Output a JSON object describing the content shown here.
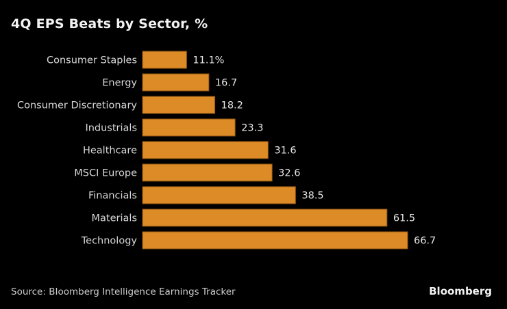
{
  "chart_data": {
    "type": "bar",
    "orientation": "horizontal",
    "title": "4Q EPS Beats by Sector, %",
    "categories": [
      "Consumer Staples",
      "Energy",
      "Consumer Discretionary",
      "Industrials",
      "Healthcare",
      "MSCI Europe",
      "Financials",
      "Materials",
      "Technology"
    ],
    "values": [
      11.1,
      16.7,
      18.2,
      23.3,
      31.6,
      32.6,
      38.5,
      61.5,
      66.7
    ],
    "data_labels": [
      "11.1%",
      "16.7",
      "18.2",
      "23.3",
      "31.6",
      "32.6",
      "38.5",
      "61.5",
      "66.7"
    ],
    "xlabel": "",
    "ylabel": "",
    "xlim": [
      0,
      66.7
    ],
    "grid": false,
    "legend": "none",
    "bar_color": "#dc8b27",
    "bar_edge_color": "#8a5210"
  },
  "footer": {
    "source": "Source: BIoomberg Intelligence Earnings Tracker",
    "brand": "Bloomberg"
  }
}
